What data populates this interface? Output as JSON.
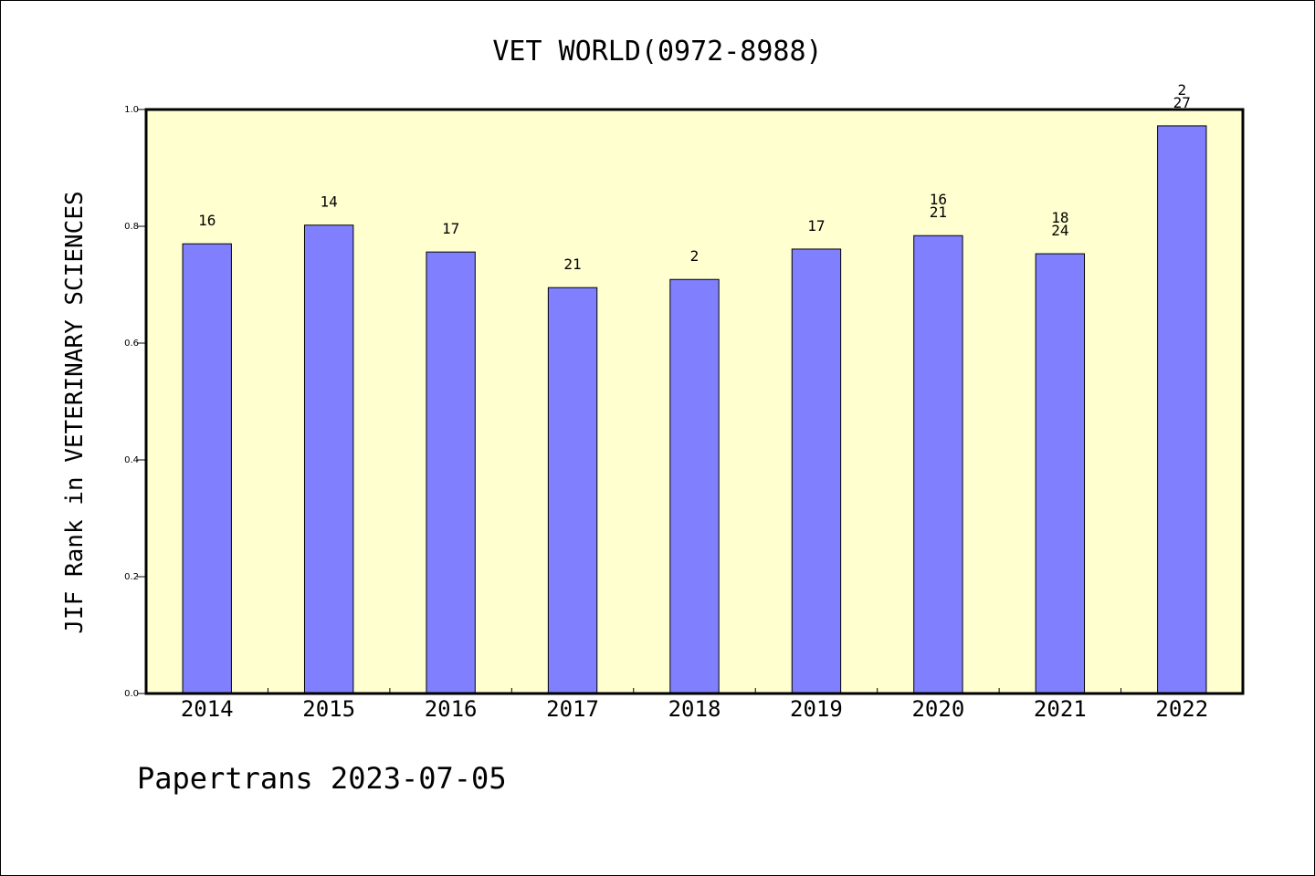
{
  "chart_data": {
    "type": "bar",
    "title": "VET WORLD(0972-8988)",
    "xlabel": "",
    "ylabel": "JIF Rank in VETERINARY SCIENCES",
    "ylim": [
      0,
      1.0
    ],
    "yticks": [
      "0.0",
      "0.2",
      "0.4",
      "0.6",
      "0.8",
      "1.0"
    ],
    "categories": [
      "2014",
      "2015",
      "2016",
      "2017",
      "2018",
      "2019",
      "2020",
      "2021",
      "2022"
    ],
    "values": [
      0.77,
      0.802,
      0.756,
      0.695,
      0.709,
      0.761,
      0.784,
      0.753,
      0.972
    ],
    "data_labels": [
      [
        "16"
      ],
      [
        "14"
      ],
      [
        "17"
      ],
      [
        "21"
      ],
      [
        "2"
      ],
      [
        "17"
      ],
      [
        "16",
        "21"
      ],
      [
        "18",
        "24"
      ],
      [
        "2",
        "27"
      ]
    ],
    "grid": false,
    "colors": {
      "bar": "#8080ff",
      "plot_background": "#ffffd0",
      "axis": "#000000"
    }
  },
  "footer": {
    "text": "Papertrans 2023-07-05"
  }
}
